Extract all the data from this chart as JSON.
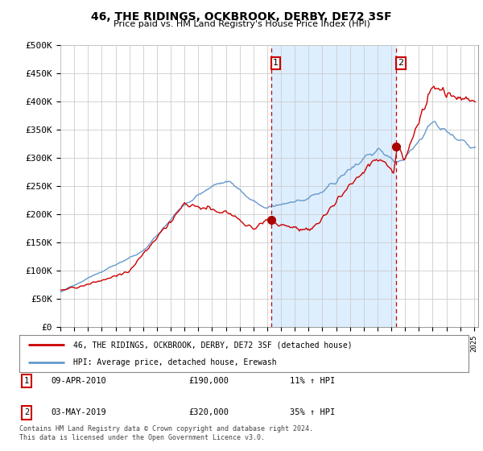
{
  "title": "46, THE RIDINGS, OCKBROOK, DERBY, DE72 3SF",
  "subtitle": "Price paid vs. HM Land Registry's House Price Index (HPI)",
  "ylabel_ticks": [
    "£0",
    "£50K",
    "£100K",
    "£150K",
    "£200K",
    "£250K",
    "£300K",
    "£350K",
    "£400K",
    "£450K",
    "£500K"
  ],
  "ytick_values": [
    0,
    50000,
    100000,
    150000,
    200000,
    250000,
    300000,
    350000,
    400000,
    450000,
    500000
  ],
  "ylim": [
    0,
    500000
  ],
  "xlim_start": 1995.0,
  "xlim_end": 2025.3,
  "purchase1_x": 2010.27,
  "purchase1_y": 190000,
  "purchase2_x": 2019.33,
  "purchase2_y": 320000,
  "vline1_x": 2010.27,
  "vline2_x": 2019.33,
  "vline_color": "#cc0000",
  "shade_color": "#ddeeff",
  "hpi_line_color": "#6699cc",
  "price_line_color": "#cc0000",
  "marker_color": "#aa0000",
  "legend_label1": "46, THE RIDINGS, OCKBROOK, DERBY, DE72 3SF (detached house)",
  "legend_label2": "HPI: Average price, detached house, Erewash",
  "annotation1_label": "1",
  "annotation2_label": "2",
  "annotation1_date": "09-APR-2010",
  "annotation1_price": "£190,000",
  "annotation1_hpi": "11% ↑ HPI",
  "annotation2_date": "03-MAY-2019",
  "annotation2_price": "£320,000",
  "annotation2_hpi": "35% ↑ HPI",
  "footer": "Contains HM Land Registry data © Crown copyright and database right 2024.\nThis data is licensed under the Open Government Licence v3.0.",
  "bg_color": "#ffffff",
  "grid_color": "#cccccc"
}
